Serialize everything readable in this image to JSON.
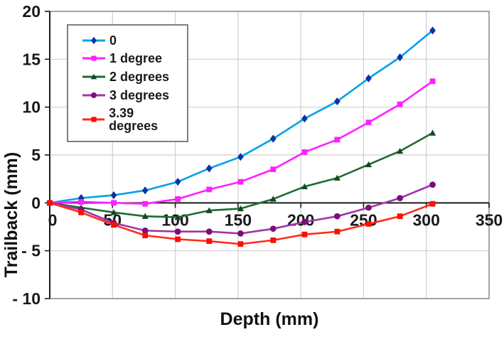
{
  "chart_data": {
    "type": "line",
    "title": "",
    "xlabel": "Depth (mm)",
    "ylabel": "Trailback (mm)",
    "xlim": [
      0,
      350
    ],
    "ylim": [
      -10,
      20
    ],
    "x_ticks": [
      0,
      50,
      100,
      150,
      200,
      250,
      300,
      350
    ],
    "x_tick_labels": [
      "0",
      "50",
      "100",
      "150",
      "200",
      "250",
      "300",
      "350"
    ],
    "y_ticks": [
      20,
      15,
      10,
      5,
      0,
      -5,
      -10
    ],
    "y_tick_labels": [
      "20",
      "15",
      "10",
      "5",
      "0",
      "- 5",
      "- 10"
    ],
    "grid": true,
    "legend_position": "top-left",
    "x": [
      0,
      25,
      51,
      76,
      102,
      127,
      152,
      178,
      203,
      229,
      254,
      279,
      305
    ],
    "series": [
      {
        "name": "0",
        "marker": "diamond",
        "line_color": "#00a2e8",
        "marker_color": "#0833a2",
        "values": [
          0,
          0.5,
          0.8,
          1.3,
          2.2,
          3.6,
          4.8,
          6.7,
          8.8,
          10.6,
          13.0,
          15.2,
          18.0
        ]
      },
      {
        "name": "1 degree",
        "marker": "square",
        "line_color": "#ff1fff",
        "marker_color": "#ff1fff",
        "values": [
          0,
          0.1,
          0.0,
          -0.1,
          0.4,
          1.4,
          2.2,
          3.5,
          5.3,
          6.6,
          8.4,
          10.3,
          12.7
        ]
      },
      {
        "name": "2 degrees",
        "marker": "triangle",
        "line_color": "#1e6b35",
        "marker_color": "#10491d",
        "values": [
          0,
          -0.5,
          -1.0,
          -1.4,
          -1.5,
          -0.8,
          -0.6,
          0.4,
          1.7,
          2.6,
          4.0,
          5.4,
          7.3
        ]
      },
      {
        "name": "3 degrees",
        "marker": "circle",
        "line_color": "#a234a8",
        "marker_color": "#7a0e7a",
        "values": [
          0,
          -0.7,
          -2.1,
          -2.9,
          -3.0,
          -3.0,
          -3.2,
          -2.7,
          -2.0,
          -1.4,
          -0.5,
          0.5,
          1.9
        ]
      },
      {
        "name": "3.39 degrees",
        "marker": "square",
        "line_color": "#ff2b1b",
        "marker_color": "#fb1000",
        "values": [
          0,
          -1.0,
          -2.3,
          -3.4,
          -3.8,
          -4.0,
          -4.3,
          -3.9,
          -3.3,
          -3.0,
          -2.2,
          -1.4,
          -0.1
        ]
      }
    ],
    "colors": {
      "gridline": "#cfcfcf",
      "plot_border": "#9b9b9b",
      "axis": "#1a1a1a"
    }
  }
}
